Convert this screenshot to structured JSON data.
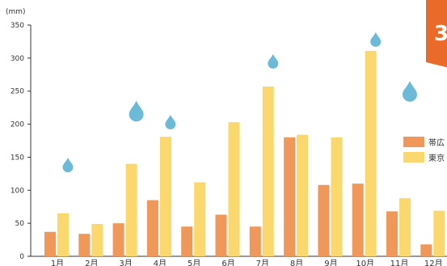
{
  "badge": {
    "text": "3",
    "color": "#ea6a2a"
  },
  "chart_data": {
    "type": "bar",
    "unit": "(mm)",
    "categories": [
      "1月",
      "2月",
      "3月",
      "4月",
      "5月",
      "6月",
      "7月",
      "8月",
      "9月",
      "10月",
      "11月",
      "12月"
    ],
    "ylim": [
      0,
      350
    ],
    "yticks": [
      0,
      50,
      100,
      150,
      200,
      250,
      300,
      350
    ],
    "series": [
      {
        "name": "帯広",
        "color": "#f0975a",
        "values": [
          37,
          34,
          50,
          85,
          45,
          63,
          45,
          180,
          108,
          110,
          68,
          18
        ]
      },
      {
        "name": "東京",
        "color": "#fbd86e",
        "values": [
          65,
          49,
          140,
          181,
          112,
          203,
          257,
          184,
          180,
          311,
          88,
          69
        ]
      }
    ],
    "legend_position": "right",
    "drop_color": "#6bbbd8",
    "drops": [
      {
        "month": "1月",
        "level": 135,
        "size": "small"
      },
      {
        "month": "3月",
        "level": 215,
        "size": "large"
      },
      {
        "month": "4月",
        "level": 200,
        "size": "small"
      },
      {
        "month": "7月",
        "level": 292,
        "size": "small"
      },
      {
        "month": "10月",
        "level": 325,
        "size": "small"
      },
      {
        "month": "11月",
        "level": 245,
        "size": "large"
      }
    ]
  }
}
